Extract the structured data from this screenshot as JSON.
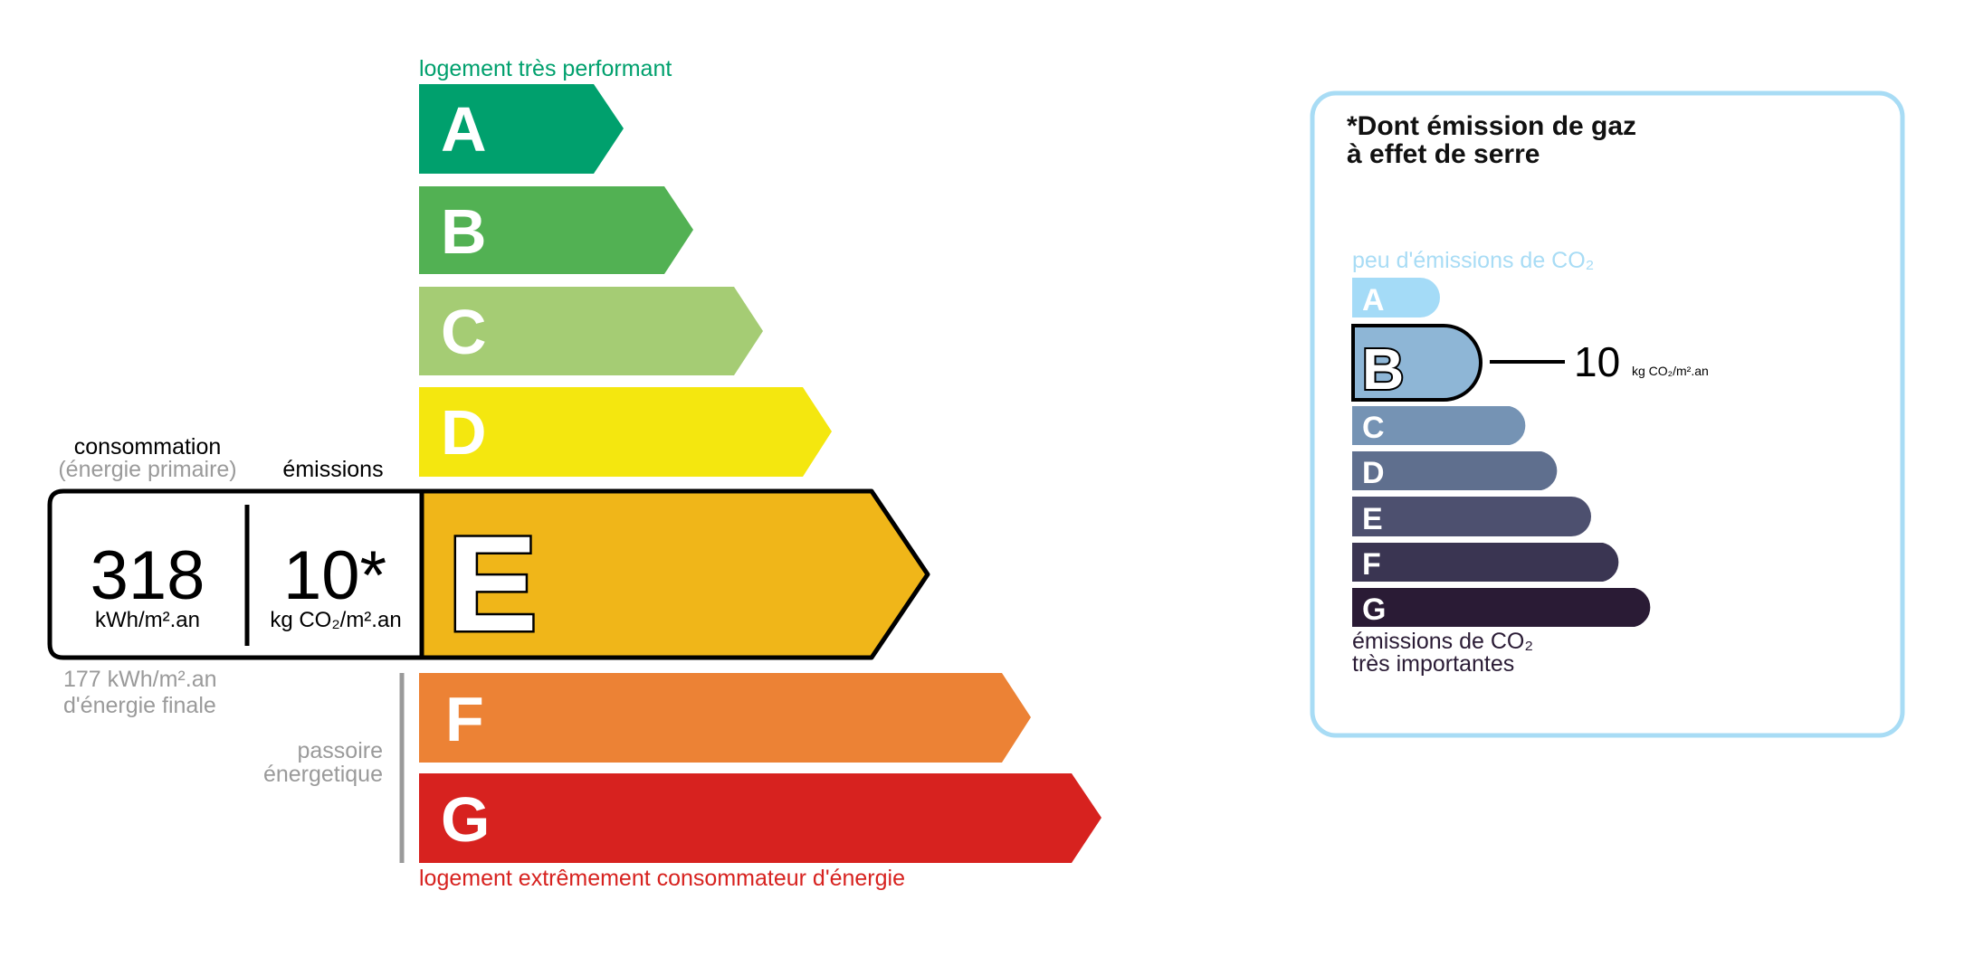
{
  "energy": {
    "top_label": "logement très performant",
    "bottom_label": "logement extrêmement consommateur d'énergie",
    "classes": [
      {
        "letter": "A",
        "color": "#00a06d"
      },
      {
        "letter": "B",
        "color": "#52b153"
      },
      {
        "letter": "C",
        "color": "#a5cc74"
      },
      {
        "letter": "D",
        "color": "#f4e70f"
      },
      {
        "letter": "E",
        "color": "#f0b619"
      },
      {
        "letter": "F",
        "color": "#ec8235"
      },
      {
        "letter": "G",
        "color": "#d7221f"
      }
    ],
    "current_class": "E",
    "consumption_label": "consommation",
    "consumption_sublabel": "(énergie primaire)",
    "emissions_label": "émissions",
    "consumption_value": "318",
    "consumption_unit": "kWh/m².an",
    "emissions_value": "10*",
    "emissions_unit": "kg CO₂/m².an",
    "final_energy_line1": "177 kWh/m².an",
    "final_energy_line2": "d'énergie finale",
    "passoire_line1": "passoire",
    "passoire_line2": "énergetique"
  },
  "ges": {
    "title_line1": "*Dont émission de gaz",
    "title_line2": "à effet de serre",
    "top_label": "peu d'émissions de CO₂",
    "bottom_line1": "émissions de CO₂",
    "bottom_line2": "très importantes",
    "classes": [
      {
        "letter": "A",
        "color": "#a4dbf7"
      },
      {
        "letter": "B",
        "color": "#8eb6d6"
      },
      {
        "letter": "C",
        "color": "#7593b4"
      },
      {
        "letter": "D",
        "color": "#5f6f8e"
      },
      {
        "letter": "E",
        "color": "#4d506f"
      },
      {
        "letter": "F",
        "color": "#3a3552"
      },
      {
        "letter": "G",
        "color": "#2a1b35"
      }
    ],
    "current_class": "B",
    "value": "10",
    "unit": "kg CO₂/m².an",
    "border_color": "#a8dcf5"
  }
}
